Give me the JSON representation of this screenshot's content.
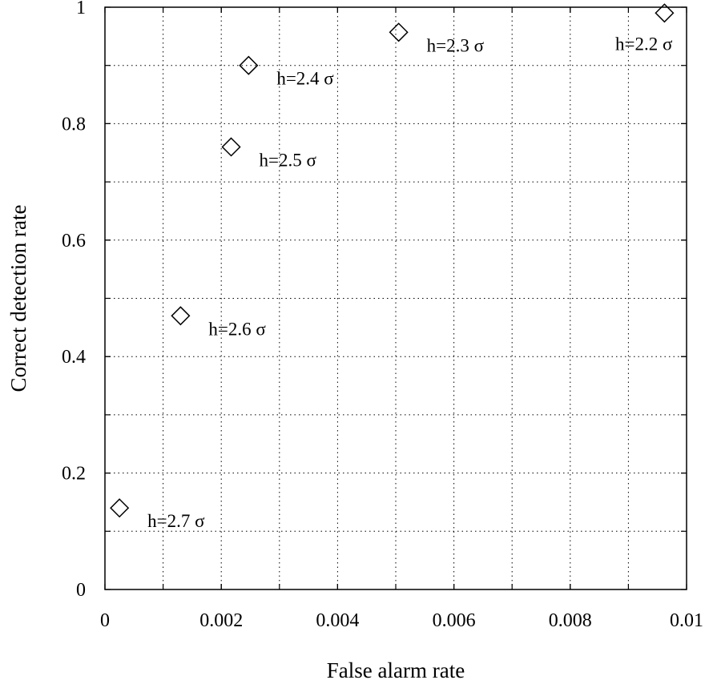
{
  "chart_data": {
    "type": "scatter",
    "title": "",
    "xlabel": "False alarm rate",
    "ylabel": "Correct detection rate",
    "xlim": [
      0,
      0.01
    ],
    "ylim": [
      0,
      1
    ],
    "x_ticks": [
      0,
      0.002,
      0.004,
      0.006,
      0.008,
      0.01
    ],
    "x_tick_labels": [
      "0",
      "0.002",
      "0.004",
      "0.006",
      "0.008",
      "0.01"
    ],
    "y_ticks": [
      0,
      0.2,
      0.4,
      0.6,
      0.8,
      1
    ],
    "y_tick_labels": [
      "0",
      "0.2",
      "0.4",
      "0.6",
      "0.8",
      "1"
    ],
    "x_grid": [
      0.001,
      0.002,
      0.003,
      0.004,
      0.005,
      0.006,
      0.007,
      0.008,
      0.009
    ],
    "y_grid": [
      0.1,
      0.2,
      0.3,
      0.4,
      0.5,
      0.6,
      0.7,
      0.8,
      0.9
    ],
    "grid": true,
    "marker": "diamond",
    "points": [
      {
        "x": 0.00025,
        "y": 0.14,
        "label": "h=2.7 σ"
      },
      {
        "x": 0.0013,
        "y": 0.47,
        "label": "h=2.6 σ"
      },
      {
        "x": 0.00217,
        "y": 0.76,
        "label": "h=2.5 σ"
      },
      {
        "x": 0.00247,
        "y": 0.9,
        "label": "h=2.4 σ"
      },
      {
        "x": 0.00505,
        "y": 0.957,
        "label": "h=2.3 σ"
      },
      {
        "x": 0.00962,
        "y": 0.99,
        "label": "h=2.2 σ"
      }
    ]
  }
}
